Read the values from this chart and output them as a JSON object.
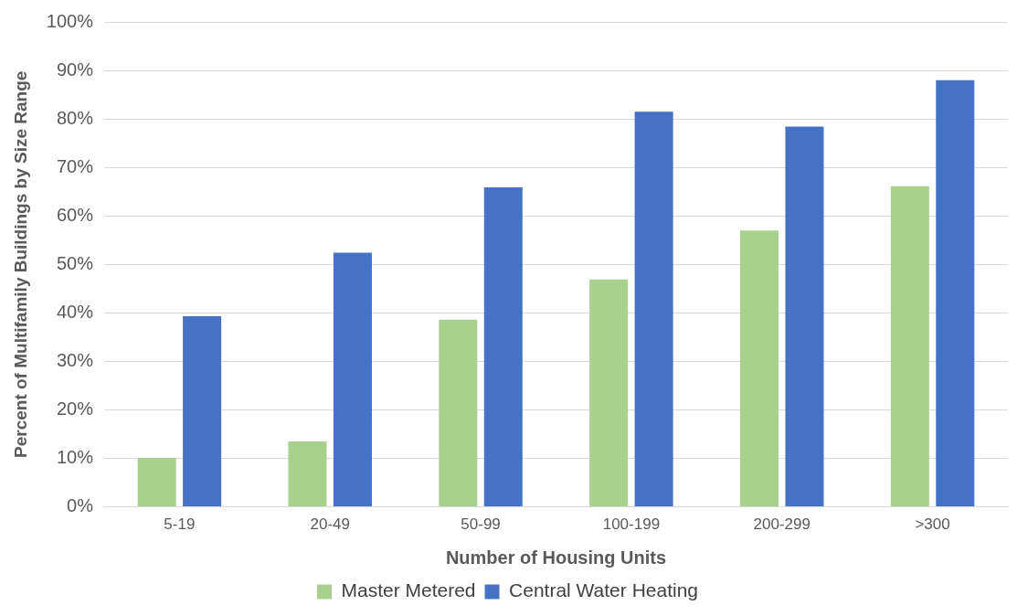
{
  "chart_data": {
    "type": "bar",
    "xlabel": "Number of Housing Units",
    "ylabel": "Percent of Multifamily Buildings by Size Range",
    "categories": [
      "5-19",
      "20-49",
      "50-99",
      "100-199",
      "200-299",
      ">300"
    ],
    "series": [
      {
        "name": "Master Metered",
        "color": "#a9d18e",
        "values": [
          10.1,
          13.5,
          38.6,
          46.9,
          57.0,
          66.1
        ]
      },
      {
        "name": "Central Water Heating",
        "color": "#4472c4",
        "values": [
          39.3,
          52.4,
          65.9,
          81.5,
          78.4,
          88.0
        ]
      }
    ],
    "ylim": [
      0,
      100
    ],
    "yticks": [
      {
        "value": 0,
        "label": "0%"
      },
      {
        "value": 10,
        "label": "10%"
      },
      {
        "value": 20,
        "label": "20%"
      },
      {
        "value": 30,
        "label": "30%"
      },
      {
        "value": 40,
        "label": "40%"
      },
      {
        "value": 50,
        "label": "50%"
      },
      {
        "value": 60,
        "label": "60%"
      },
      {
        "value": 70,
        "label": "70%"
      },
      {
        "value": 80,
        "label": "80%"
      },
      {
        "value": 90,
        "label": "90%"
      },
      {
        "value": 100,
        "label": "100%"
      }
    ],
    "grid": "y",
    "legend": "bottom"
  }
}
